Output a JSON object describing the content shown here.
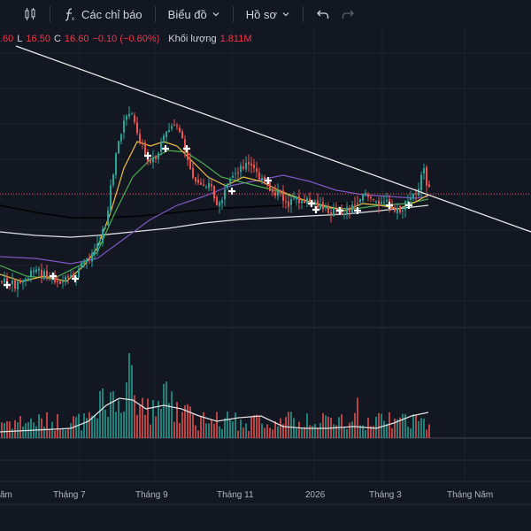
{
  "toolbar": {
    "indicators_label": "Các chỉ báo",
    "chart_type_label": "Biểu đồ",
    "profile_label": "Hồ sơ"
  },
  "legend": {
    "open_value": ".60",
    "low_key": "L",
    "low_value": "16.50",
    "close_key": "C",
    "close_value": "16.60",
    "change_value": "−0.10 (−0.60%)",
    "volume_label": "Khối lượng",
    "volume_value": "1.811M"
  },
  "colors": {
    "background": "#131722",
    "up": "#26a69a",
    "down": "#ef5350",
    "ma_short": "#f0c040",
    "ma_mid": "#4caf50",
    "ma_long": "#7e57c2",
    "ma_longer": "#000000",
    "ma_longest": "#e0e0e0",
    "trendline": "#e8e8e8"
  },
  "chart_data": {
    "type": "candlestick",
    "x_labels": [
      "ăm",
      "Tháng 7",
      "Tháng 9",
      "Tháng 11",
      "2026",
      "Tháng 3",
      "Tháng Năm"
    ],
    "last_close": 16.6,
    "trendline": "descending resistance",
    "indicators": [
      "moving averages",
      "volume"
    ]
  }
}
